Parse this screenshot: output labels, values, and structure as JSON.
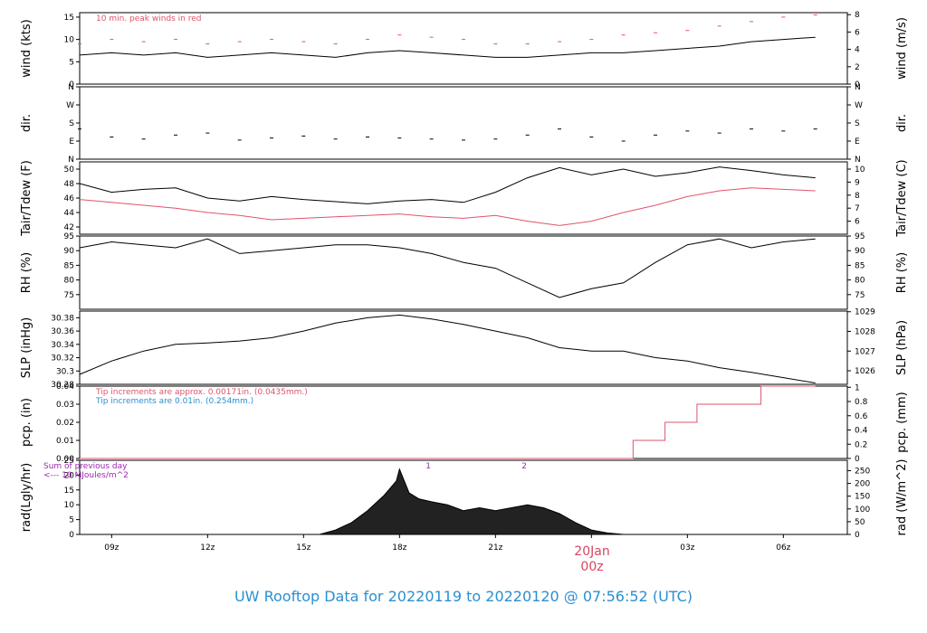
{
  "title": "UW Rooftop Data for 20220119  to  20220120 @ 07:56:52  (UTC)",
  "date_label": {
    "day": "20Jan",
    "hour": "00z"
  },
  "colors": {
    "black": "#000000",
    "red": "#df536b",
    "blue": "#2b8fd1",
    "purple": "#9c27b0"
  },
  "chart_data": [
    {
      "type": "line",
      "panel": "wind",
      "ylabel_left": "wind (kts)",
      "ylabel_right": "wind (m/s)",
      "ylim": [
        0,
        16
      ],
      "yticks_left": [
        0,
        5,
        10,
        15
      ],
      "yticks_right": [
        {
          "value": 0,
          "label": "0"
        },
        {
          "value": 3.89,
          "label": "2"
        },
        {
          "value": 7.78,
          "label": "4"
        },
        {
          "value": 11.66,
          "label": "6"
        },
        {
          "value": 15.55,
          "label": "8"
        }
      ],
      "annotation": "10 min. peak winds in red",
      "x": [
        8,
        9,
        10,
        11,
        12,
        13,
        14,
        15,
        16,
        17,
        18,
        19,
        20,
        21,
        22,
        23,
        24,
        25,
        26,
        27,
        28,
        29,
        30,
        31
      ],
      "series": [
        {
          "values": [
            6.5,
            7,
            6.5,
            7,
            6,
            6.5,
            7,
            6.5,
            6,
            7,
            7.5,
            7,
            6.5,
            6,
            6,
            6.5,
            7,
            7,
            7.5,
            8,
            8.5,
            9.5,
            10,
            10.5
          ]
        },
        {
          "values": [
            9,
            10,
            9.5,
            10,
            9,
            9.5,
            10,
            9.5,
            9,
            10,
            11,
            10.5,
            10,
            9,
            9,
            9.5,
            10,
            11,
            11.5,
            12,
            13,
            14,
            15,
            15.5
          ]
        }
      ]
    },
    {
      "type": "scatter",
      "panel": "dir",
      "ylabel_left": "dir.",
      "ylabel_right": "dir.",
      "ylim": [
        0,
        360
      ],
      "yticks_left": [
        {
          "value": 0,
          "label": "N"
        },
        {
          "value": 90,
          "label": "E"
        },
        {
          "value": 180,
          "label": "S"
        },
        {
          "value": 270,
          "label": "W"
        },
        {
          "value": 360,
          "label": "N"
        }
      ],
      "yticks_right": [
        {
          "value": 0,
          "label": "N"
        },
        {
          "value": 90,
          "label": "E"
        },
        {
          "value": 180,
          "label": "S"
        },
        {
          "value": 270,
          "label": "W"
        },
        {
          "value": 360,
          "label": "N"
        }
      ],
      "x": [
        8,
        9,
        10,
        11,
        12,
        13,
        14,
        15,
        16,
        17,
        18,
        19,
        20,
        21,
        22,
        23,
        24,
        25,
        26,
        27,
        28,
        29,
        30,
        31
      ],
      "series": [
        {
          "values": [
            150,
            110,
            100,
            120,
            130,
            95,
            105,
            115,
            100,
            110,
            105,
            100,
            95,
            100,
            120,
            150,
            110,
            90,
            120,
            140,
            130,
            150,
            140,
            150
          ]
        }
      ]
    },
    {
      "type": "line",
      "panel": "temp",
      "ylabel_left": "Tair/Tdew (F)",
      "ylabel_right": "Tair/Tdew (C)",
      "ylim": [
        41,
        51
      ],
      "yticks_left": [
        42,
        44,
        46,
        48,
        50
      ],
      "yticks_right": [
        {
          "value": 42.8,
          "label": "6"
        },
        {
          "value": 44.6,
          "label": "7"
        },
        {
          "value": 46.4,
          "label": "8"
        },
        {
          "value": 48.2,
          "label": "9"
        },
        {
          "value": 50,
          "label": "10"
        }
      ],
      "x": [
        8,
        9,
        10,
        11,
        12,
        13,
        14,
        15,
        16,
        17,
        18,
        19,
        20,
        21,
        22,
        23,
        24,
        25,
        26,
        27,
        28,
        29,
        30,
        31
      ],
      "series": [
        {
          "values": [
            48,
            46.8,
            47.2,
            47.4,
            46,
            45.6,
            46.2,
            45.8,
            45.5,
            45.2,
            45.6,
            45.8,
            45.4,
            46.8,
            48.8,
            50.2,
            49.2,
            50,
            49,
            49.5,
            50.3,
            49.8,
            49.2,
            48.8
          ]
        },
        {
          "values": [
            45.8,
            45.4,
            45,
            44.6,
            44,
            43.6,
            43,
            43.2,
            43.4,
            43.6,
            43.8,
            43.4,
            43.2,
            43.6,
            42.8,
            42.2,
            42.8,
            44,
            45,
            46.2,
            47,
            47.4,
            47.2,
            47
          ]
        }
      ]
    },
    {
      "type": "line",
      "panel": "rh",
      "ylabel_left": "RH (%)",
      "ylabel_right": "RH (%)",
      "ylim": [
        70,
        95
      ],
      "yticks_left": [
        75,
        80,
        85,
        90,
        95
      ],
      "yticks_right": [
        75,
        80,
        85,
        90,
        95
      ],
      "x": [
        8,
        9,
        10,
        11,
        12,
        13,
        14,
        15,
        16,
        17,
        18,
        19,
        20,
        21,
        22,
        23,
        24,
        25,
        26,
        27,
        28,
        29,
        30,
        31
      ],
      "series": [
        {
          "values": [
            91,
            93,
            92,
            91,
            94,
            89,
            90,
            91,
            92,
            92,
            91,
            89,
            86,
            84,
            79,
            74,
            77,
            79,
            86,
            92,
            94,
            91,
            93,
            94
          ]
        }
      ]
    },
    {
      "type": "line",
      "panel": "slp",
      "ylabel_left": "SLP (inHg)",
      "ylabel_right": "SLP (hPa)",
      "ylim": [
        30.28,
        30.39
      ],
      "yticks_left": [
        30.28,
        30.3,
        30.32,
        30.34,
        30.36,
        30.38
      ],
      "yticks_right": [
        {
          "value": 30.3004,
          "label": "1026"
        },
        {
          "value": 30.3299,
          "label": "1027"
        },
        {
          "value": 30.3595,
          "label": "1028"
        },
        {
          "value": 30.389,
          "label": "1029"
        }
      ],
      "x": [
        8,
        9,
        10,
        11,
        12,
        13,
        14,
        15,
        16,
        17,
        18,
        19,
        20,
        21,
        22,
        23,
        24,
        25,
        26,
        27,
        28,
        29,
        30,
        31
      ],
      "series": [
        {
          "values": [
            30.295,
            30.315,
            30.33,
            30.34,
            30.342,
            30.345,
            30.35,
            30.36,
            30.372,
            30.38,
            30.384,
            30.378,
            30.37,
            30.36,
            30.35,
            30.335,
            30.33,
            30.33,
            30.32,
            30.315,
            30.305,
            30.298,
            30.29,
            30.282
          ]
        }
      ]
    },
    {
      "type": "line",
      "panel": "pcp",
      "ylabel_left": "pcp. (in)",
      "ylabel_right": "pcp. (mm)",
      "ylim": [
        0,
        0.04
      ],
      "yticks_left": [
        {
          "value": 0,
          "label": "0.00"
        },
        {
          "value": 0.01,
          "label": "0.01"
        },
        {
          "value": 0.02,
          "label": "0.02"
        },
        {
          "value": 0.03,
          "label": "0.03"
        },
        {
          "value": 0.04,
          "label": "0.04"
        }
      ],
      "yticks_right": [
        {
          "value": 0,
          "label": "0"
        },
        {
          "value": 0.00787,
          "label": "0.2"
        },
        {
          "value": 0.01575,
          "label": "0.4"
        },
        {
          "value": 0.02362,
          "label": "0.6"
        },
        {
          "value": 0.0315,
          "label": "0.8"
        },
        {
          "value": 0.03937,
          "label": "1"
        }
      ],
      "annotations": [
        {
          "text": "Tip increments are approx. 0.00171in. (0.0435mm.)",
          "color": "red"
        },
        {
          "text": "Tip increments are 0.01in. (0.254mm.)",
          "color": "blue"
        }
      ],
      "x": [
        8,
        25.3,
        25.3,
        26.3,
        26.3,
        27.3,
        27.3,
        28.3,
        28.3,
        29.3,
        29.3,
        31
      ],
      "series": [
        {
          "values": [
            0,
            0,
            0.01,
            0.01,
            0.02,
            0.02,
            0.03,
            0.03,
            0.03,
            0.03,
            0.04,
            0.04
          ]
        }
      ]
    },
    {
      "type": "area",
      "panel": "rad",
      "ylabel_left": "rad(Lgly/hr)",
      "ylabel_right": "rad (W/m^2)",
      "ylim": [
        0,
        25
      ],
      "yticks_left": [
        0,
        5,
        10,
        15,
        20,
        25
      ],
      "yticks_right": [
        {
          "value": 0,
          "label": "0"
        },
        {
          "value": 4.3,
          "label": "50"
        },
        {
          "value": 8.6,
          "label": "100"
        },
        {
          "value": 12.9,
          "label": "150"
        },
        {
          "value": 17.2,
          "label": "200"
        },
        {
          "value": 21.5,
          "label": "250"
        }
      ],
      "annotation_lines": [
        "Sum of previous day",
        "<--- 10 MJoules/m^2"
      ],
      "markers": [
        {
          "x": 18.9,
          "label": "1"
        },
        {
          "x": 21.9,
          "label": "2"
        }
      ],
      "x": [
        8,
        15.5,
        16.0,
        16.5,
        17.0,
        17.5,
        17.9,
        18.0,
        18.3,
        18.6,
        19.0,
        19.5,
        20.0,
        20.5,
        21.0,
        21.5,
        22.0,
        22.5,
        23.0,
        23.5,
        24.0,
        24.5,
        25.0,
        31
      ],
      "series": [
        {
          "values": [
            0,
            0,
            1.5,
            4,
            8,
            13,
            18,
            22,
            14,
            12,
            11,
            10,
            8,
            9,
            8,
            9,
            10,
            9,
            7,
            4,
            1.5,
            0.5,
            0,
            0
          ]
        }
      ]
    }
  ],
  "xaxis": {
    "range": [
      8,
      32
    ],
    "ticks": [
      {
        "value": 9,
        "label": "09z"
      },
      {
        "value": 12,
        "label": "12z"
      },
      {
        "value": 15,
        "label": "15z"
      },
      {
        "value": 18,
        "label": "18z"
      },
      {
        "value": 21,
        "label": "21z"
      },
      {
        "value": 24,
        "label": ""
      },
      {
        "value": 27,
        "label": "03z"
      },
      {
        "value": 30,
        "label": "06z"
      }
    ]
  }
}
